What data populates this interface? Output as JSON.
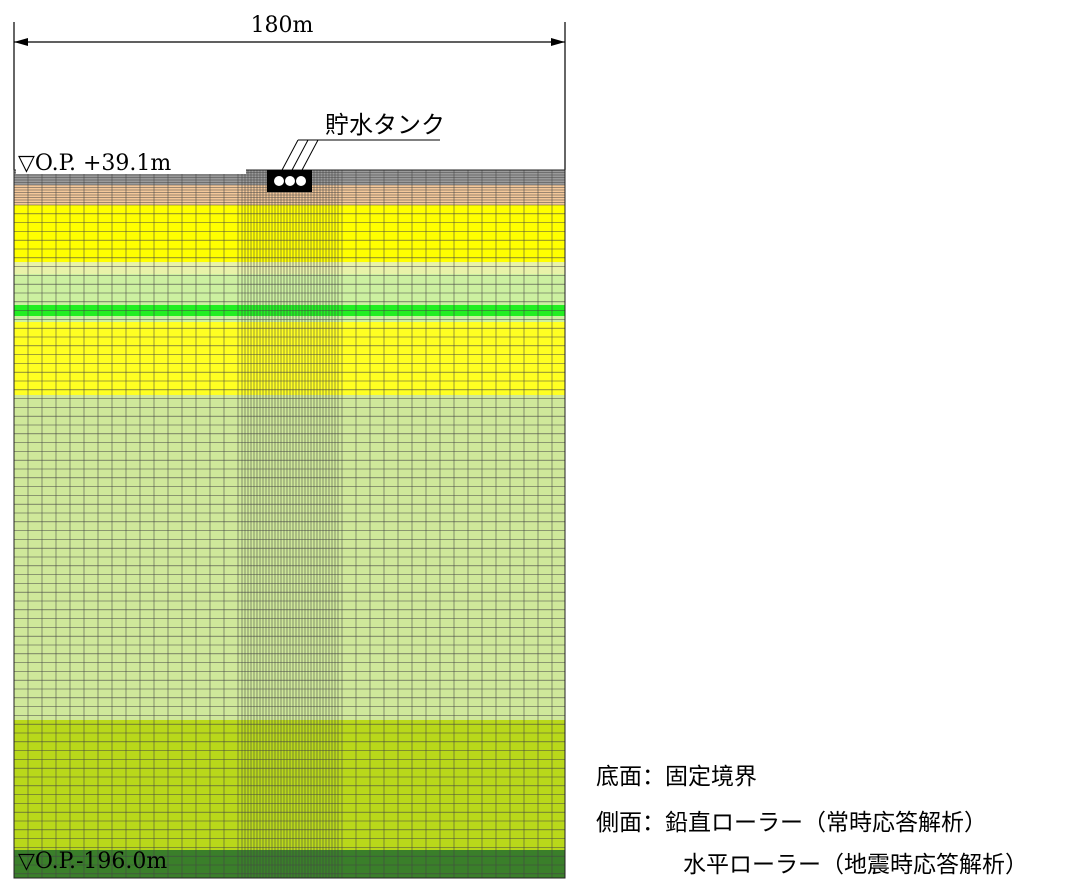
{
  "dimension": {
    "width_label": "180m"
  },
  "tank": {
    "label": "貯水タンク"
  },
  "elevations": {
    "top": "▽O.P. +39.1m",
    "bottom": "▽O.P.-196.0m"
  },
  "boundary_conditions": {
    "bottom": "底面：固定境界",
    "side_line1": "側面：鉛直ローラー（常時応答解析）",
    "side_line2": "水平ローラー（地震時応答解析）"
  },
  "layers": [
    {
      "color": "#9a9a9a"
    },
    {
      "color": "#f4c89a"
    },
    {
      "color": "#ffff00"
    },
    {
      "color": "#e8f2a8"
    },
    {
      "color": "#ccf0a0"
    },
    {
      "color": "#22ee22"
    },
    {
      "color": "#ccf0a0"
    },
    {
      "color": "#ffff22"
    },
    {
      "color": "#cfe89a"
    },
    {
      "color": "#b9d81a"
    },
    {
      "color": "#3a7f2a"
    },
    {
      "color": "#b39422"
    }
  ]
}
